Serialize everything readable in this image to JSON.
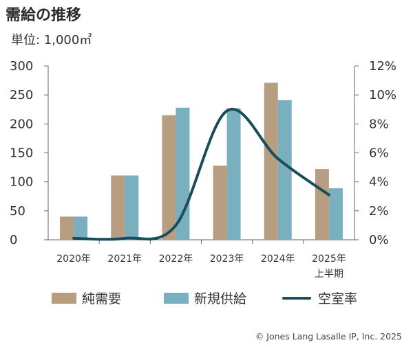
{
  "header": {
    "title": "需給の推移",
    "unit": "単位: 1,000㎡"
  },
  "legend": {
    "items": [
      {
        "label": "純需要",
        "color": "#b89e80",
        "kind": "bar"
      },
      {
        "label": "新規供給",
        "color": "#7aafc0",
        "kind": "bar"
      },
      {
        "label": "空室率",
        "color": "#1a4d5c",
        "kind": "line"
      }
    ]
  },
  "footer": {
    "copyright": "© Jones Lang Lasalle IP, Inc. 2025"
  },
  "chart_data": {
    "type": "bar",
    "categories": [
      "2020年",
      "2021年",
      "2022年",
      "2023年",
      "2024年",
      "2025年\n上半期"
    ],
    "series": [
      {
        "name": "純需要",
        "type": "bar",
        "axis": "left",
        "color": "#b89e80",
        "values": [
          40,
          111,
          215,
          128,
          271,
          122
        ]
      },
      {
        "name": "新規供給",
        "type": "bar",
        "axis": "left",
        "color": "#7aafc0",
        "values": [
          40,
          111,
          228,
          227,
          241,
          89
        ]
      },
      {
        "name": "空室率",
        "type": "line",
        "axis": "right",
        "color": "#1a4d5c",
        "values": [
          0.1,
          0.1,
          1.0,
          8.9,
          5.6,
          3.1
        ]
      }
    ],
    "y_left": {
      "min": 0,
      "max": 300,
      "ticks": [
        0,
        50,
        100,
        150,
        200,
        250,
        300
      ]
    },
    "y_right": {
      "min": 0,
      "max": 12,
      "ticks": [
        "0%",
        "2%",
        "4%",
        "6%",
        "8%",
        "10%",
        "12%"
      ]
    },
    "grid": false,
    "legend_position": "bottom"
  }
}
